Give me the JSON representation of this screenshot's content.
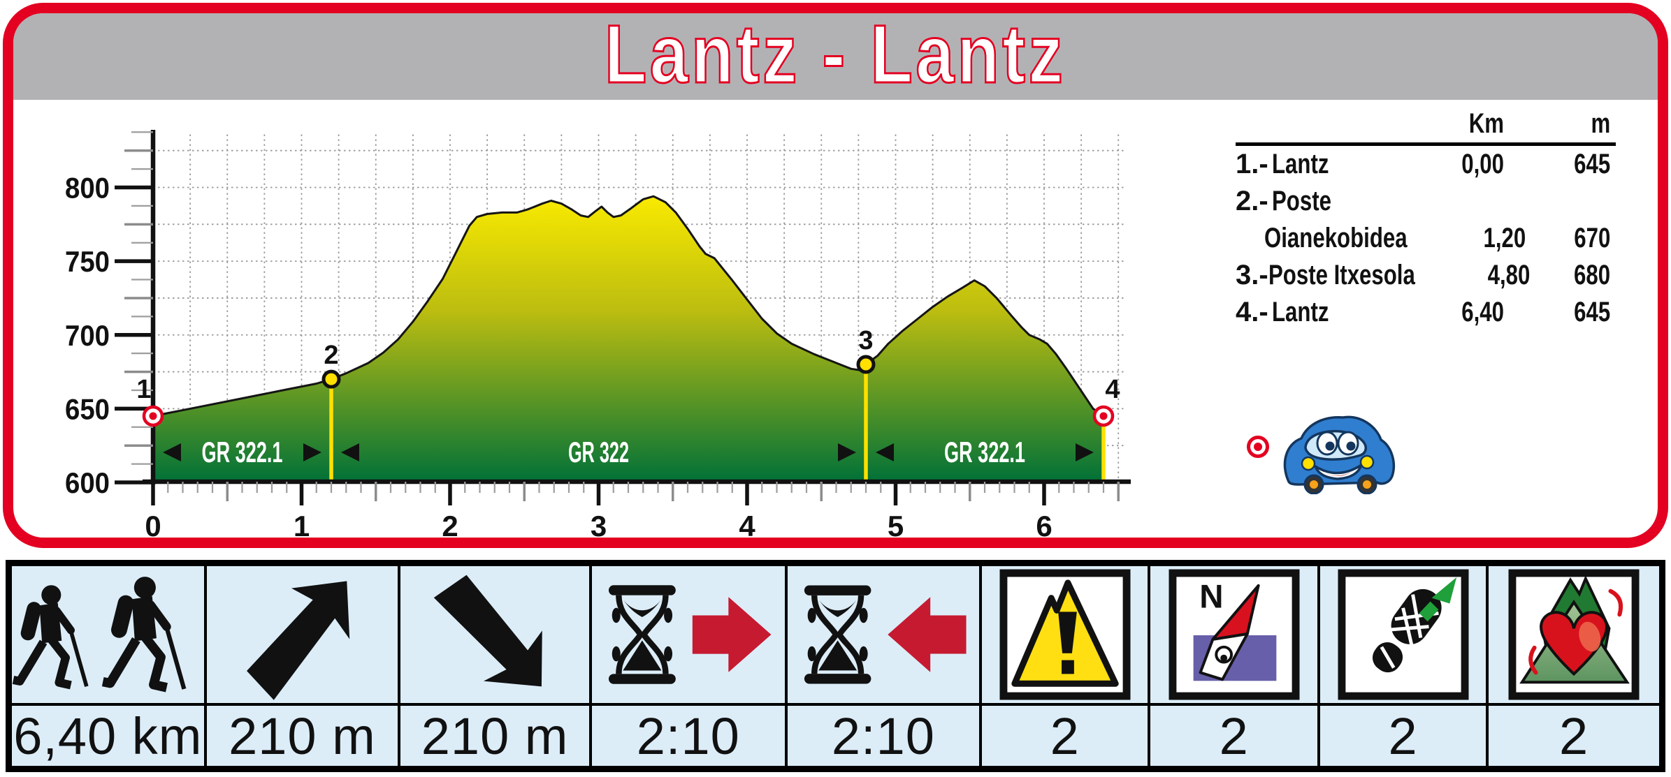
{
  "title": "Lantz - Lantz",
  "theme": {
    "accent_red": "#e30021",
    "arrow_red": "#c61a31",
    "header_gray": "#b2b2b5",
    "table_blue": "#dcedf8",
    "waypoint_yellow": "#ffe000",
    "profile_top": "#f9ea00",
    "profile_bottom": "#007138",
    "compass_purple": "#675fa9",
    "trail_green": "#1fa03a"
  },
  "waypoint_table": {
    "headers": {
      "km": "Km",
      "m": "m"
    },
    "rows": [
      {
        "num": "1.-",
        "name": "Lantz",
        "name2": "",
        "km": "0,00",
        "m": "645"
      },
      {
        "num": "2.-",
        "name": "Poste",
        "name2": "Oianekobidea",
        "km": "1,20",
        "m": "670"
      },
      {
        "num": "3.-",
        "name": "Poste Itxesola",
        "name2": "",
        "km": "4,80",
        "m": "680"
      },
      {
        "num": "4.-",
        "name": "Lantz",
        "name2": "",
        "km": "6,40",
        "m": "645"
      }
    ]
  },
  "chart_data": {
    "type": "area",
    "title": "Lantz - Lantz elevation profile",
    "x_unit": "km",
    "y_unit": "m",
    "xlim": [
      0,
      6.55
    ],
    "ylim": [
      600,
      837.5
    ],
    "x_ticks": [
      0,
      1,
      2,
      3,
      4,
      5,
      6
    ],
    "y_ticks": [
      600,
      650,
      700,
      750,
      800
    ],
    "grid": {
      "x_step": 0.25,
      "y_step": 25,
      "style": "dotted"
    },
    "profile": [
      [
        0,
        645
      ],
      [
        0.3,
        651
      ],
      [
        0.6,
        657
      ],
      [
        0.9,
        663
      ],
      [
        1.1,
        667
      ],
      [
        1.2,
        670
      ],
      [
        1.3,
        674
      ],
      [
        1.45,
        681
      ],
      [
        1.55,
        688
      ],
      [
        1.65,
        697
      ],
      [
        1.75,
        709
      ],
      [
        1.85,
        723
      ],
      [
        1.95,
        738
      ],
      [
        2.02,
        752
      ],
      [
        2.08,
        764
      ],
      [
        2.13,
        774
      ],
      [
        2.18,
        780
      ],
      [
        2.25,
        782
      ],
      [
        2.35,
        783
      ],
      [
        2.45,
        783
      ],
      [
        2.52,
        785
      ],
      [
        2.62,
        789
      ],
      [
        2.68,
        791
      ],
      [
        2.75,
        789
      ],
      [
        2.82,
        785
      ],
      [
        2.88,
        781
      ],
      [
        2.93,
        780
      ],
      [
        2.98,
        784
      ],
      [
        3.02,
        787
      ],
      [
        3.06,
        783
      ],
      [
        3.1,
        780
      ],
      [
        3.15,
        781
      ],
      [
        3.22,
        786
      ],
      [
        3.3,
        792
      ],
      [
        3.37,
        794
      ],
      [
        3.45,
        790
      ],
      [
        3.52,
        783
      ],
      [
        3.6,
        772
      ],
      [
        3.68,
        760
      ],
      [
        3.72,
        755
      ],
      [
        3.78,
        752
      ],
      [
        3.82,
        747
      ],
      [
        3.9,
        737
      ],
      [
        4.0,
        724
      ],
      [
        4.1,
        711
      ],
      [
        4.2,
        701
      ],
      [
        4.3,
        694
      ],
      [
        4.45,
        687
      ],
      [
        4.6,
        681
      ],
      [
        4.7,
        677
      ],
      [
        4.77,
        676
      ],
      [
        4.8,
        680
      ],
      [
        4.88,
        686
      ],
      [
        4.95,
        694
      ],
      [
        5.05,
        703
      ],
      [
        5.15,
        711
      ],
      [
        5.25,
        719
      ],
      [
        5.35,
        726
      ],
      [
        5.45,
        732
      ],
      [
        5.53,
        737
      ],
      [
        5.6,
        733
      ],
      [
        5.68,
        725
      ],
      [
        5.78,
        713
      ],
      [
        5.85,
        705
      ],
      [
        5.9,
        700
      ],
      [
        5.97,
        697
      ],
      [
        6.02,
        694
      ],
      [
        6.08,
        687
      ],
      [
        6.15,
        677
      ],
      [
        6.25,
        662
      ],
      [
        6.33,
        650
      ],
      [
        6.4,
        645
      ]
    ],
    "waypoints": [
      {
        "n": "1",
        "km": 0,
        "m": 645,
        "style": "target",
        "line": false
      },
      {
        "n": "2",
        "km": 1.2,
        "m": 670,
        "style": "dot",
        "line": true
      },
      {
        "n": "3",
        "km": 4.8,
        "m": 680,
        "style": "dot",
        "line": true
      },
      {
        "n": "4",
        "km": 6.4,
        "m": 645,
        "style": "target",
        "line": true
      }
    ],
    "segments": [
      {
        "label": "GR 322.1",
        "from": 0,
        "to": 1.2
      },
      {
        "label": "GR 322",
        "from": 1.2,
        "to": 4.8
      },
      {
        "label": "GR 322.1",
        "from": 4.8,
        "to": 6.4
      }
    ]
  },
  "summary": {
    "columns": [
      {
        "icon": "hikers-icon",
        "value": "6,40 km"
      },
      {
        "icon": "ascent-arrow-icon",
        "value": "210 m"
      },
      {
        "icon": "descent-arrow-icon",
        "value": "210 m"
      },
      {
        "icon": "time-forward-hourglass-icon",
        "value": "2:10"
      },
      {
        "icon": "time-reverse-hourglass-icon",
        "value": "2:10"
      },
      {
        "icon": "difficulty-warning-icon",
        "value": "2"
      },
      {
        "icon": "orientation-compass-icon",
        "value": "2",
        "icon_letter": "N"
      },
      {
        "icon": "terrain-footprint-icon",
        "value": "2"
      },
      {
        "icon": "effort-heart-icon",
        "value": "2"
      }
    ]
  }
}
